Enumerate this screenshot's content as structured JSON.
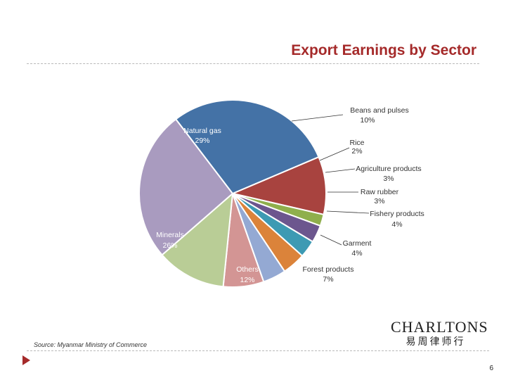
{
  "slide": {
    "title": "Export Earnings by Sector",
    "source": "Source: Myanmar Ministry of Commerce",
    "logo_text": "CHARLTONS",
    "logo_chinese": "易周律师行",
    "page_number": "6"
  },
  "colors": {
    "title": "#a52a2a",
    "arrow": "#a52a2a"
  },
  "chart_data": {
    "type": "pie",
    "title": "",
    "legend": "none",
    "slices": [
      {
        "label": "Beans and pulses",
        "percent_label": "10%",
        "value": 10,
        "color": "#a8433f"
      },
      {
        "label": "Rice",
        "percent_label": "2%",
        "value": 2,
        "color": "#8faf4c"
      },
      {
        "label": "Agriculture products",
        "percent_label": "3%",
        "value": 3,
        "color": "#6c568e"
      },
      {
        "label": "Raw rubber",
        "percent_label": "3%",
        "value": 3,
        "color": "#3d9ab3"
      },
      {
        "label": "Fishery products",
        "percent_label": "4%",
        "value": 4,
        "color": "#db833a"
      },
      {
        "label": "Garment",
        "percent_label": "4%",
        "value": 4,
        "color": "#94a9d3"
      },
      {
        "label": "Forest products",
        "percent_label": "7%",
        "value": 7,
        "color": "#d39594"
      },
      {
        "label": "Others",
        "percent_label": "12%",
        "value": 12,
        "color": "#b9cd96"
      },
      {
        "label": "Minerals",
        "percent_label": "26%",
        "value": 26,
        "color": "#a99bbf"
      },
      {
        "label": "Natural gas",
        "percent_label": "29%",
        "value": 29,
        "color": "#4472a6"
      }
    ]
  }
}
